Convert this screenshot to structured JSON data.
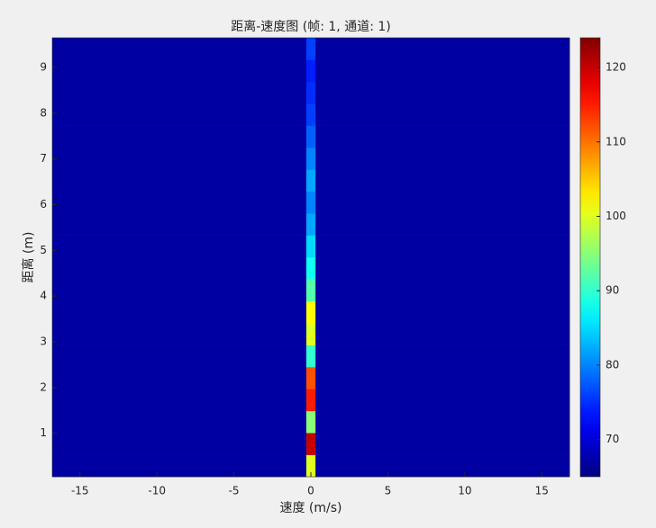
{
  "chart_data": {
    "type": "heatmap",
    "title": "距离-速度图 (帧: 1, 通道: 1)",
    "xlabel": "速度 (m/s)",
    "ylabel": "距离 (m)",
    "xbins": [
      -16.8,
      -0.3,
      0.3,
      16.8
    ],
    "ybins": [
      0.05,
      0.53,
      1.01,
      1.49,
      1.97,
      2.45,
      2.93,
      3.41,
      3.89,
      4.37,
      4.85,
      5.33,
      5.81,
      6.29,
      6.77,
      7.25,
      7.73,
      8.21,
      8.69,
      9.17,
      9.65
    ],
    "z": [
      [
        67,
        100,
        67
      ],
      [
        67,
        120,
        67
      ],
      [
        67,
        95,
        67
      ],
      [
        67,
        115,
        67
      ],
      [
        67,
        112,
        67
      ],
      [
        67,
        90,
        67
      ],
      [
        67,
        100,
        67
      ],
      [
        67,
        102,
        67
      ],
      [
        67,
        92,
        67
      ],
      [
        67,
        88,
        67
      ],
      [
        67,
        85,
        67
      ],
      [
        67,
        82,
        67
      ],
      [
        67,
        80,
        67
      ],
      [
        67,
        82,
        67
      ],
      [
        67,
        80,
        67
      ],
      [
        67,
        78,
        67
      ],
      [
        67,
        76,
        67
      ],
      [
        67,
        75,
        67
      ],
      [
        67,
        74,
        67
      ],
      [
        67,
        76,
        67
      ]
    ],
    "xlim": [
      -16.8,
      16.8
    ],
    "xticks": [
      -15,
      -10,
      -5,
      0,
      5,
      10,
      15
    ],
    "ylim": [
      0.05,
      9.65
    ],
    "yticks": [
      1,
      2,
      3,
      4,
      5,
      6,
      7,
      8,
      9
    ],
    "clim": [
      65,
      124
    ],
    "cticks": [
      70,
      80,
      90,
      100,
      110,
      120
    ],
    "colormap": "jet"
  }
}
